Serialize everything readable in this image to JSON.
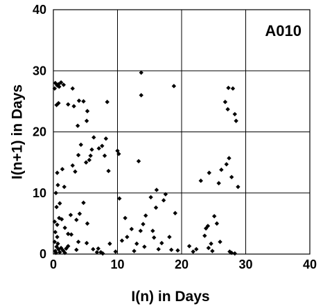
{
  "chart_data": {
    "type": "scatter",
    "title": "",
    "panel_label": "A010",
    "xlabel": "I(n) in Days",
    "ylabel": "I(n+1) in Days",
    "xlim": [
      0,
      40
    ],
    "ylim": [
      0,
      40
    ],
    "xticks": [
      "0",
      "10",
      "20",
      "30",
      "40"
    ],
    "yticks": [
      "0",
      "10",
      "20",
      "30",
      "40"
    ],
    "grid": true,
    "marker": "diamond",
    "marker_color": "#000000",
    "points": [
      [
        0.3,
        0.5
      ],
      [
        0.5,
        1.2
      ],
      [
        0.2,
        2.0
      ],
      [
        0.6,
        2.8
      ],
      [
        0.4,
        0.2
      ],
      [
        0.8,
        0.8
      ],
      [
        1.0,
        0.3
      ],
      [
        1.2,
        1.0
      ],
      [
        0.7,
        1.7
      ],
      [
        1.5,
        0.6
      ],
      [
        1.8,
        0.2
      ],
      [
        2.0,
        0.9
      ],
      [
        2.3,
        1.3
      ],
      [
        0.3,
        3.6
      ],
      [
        0.6,
        4.8
      ],
      [
        0.2,
        5.3
      ],
      [
        0.9,
        5.9
      ],
      [
        1.3,
        5.7
      ],
      [
        0.5,
        7.7
      ],
      [
        1.0,
        8.3
      ],
      [
        1.8,
        4.3
      ],
      [
        2.3,
        3.3
      ],
      [
        2.8,
        3.2
      ],
      [
        0.4,
        10.0
      ],
      [
        0.7,
        11.3
      ],
      [
        1.7,
        11.0
      ],
      [
        0.6,
        13.3
      ],
      [
        1.4,
        13.9
      ],
      [
        0.5,
        24.4
      ],
      [
        0.8,
        24.7
      ],
      [
        0.2,
        27.1
      ],
      [
        0.6,
        27.6
      ],
      [
        0.9,
        27.4
      ],
      [
        1.2,
        28.1
      ],
      [
        0.8,
        27.8
      ],
      [
        0.3,
        28.0
      ],
      [
        1.6,
        27.7
      ],
      [
        2.3,
        24.5
      ],
      [
        3.2,
        24.2
      ],
      [
        3.0,
        27.1
      ],
      [
        3.8,
        21.0
      ],
      [
        4.0,
        25.1
      ],
      [
        4.7,
        25.0
      ],
      [
        5.3,
        23.4
      ],
      [
        5.2,
        21.8
      ],
      [
        3.0,
        14.5
      ],
      [
        3.4,
        13.5
      ],
      [
        3.9,
        16.2
      ],
      [
        4.3,
        17.9
      ],
      [
        5.1,
        15.0
      ],
      [
        5.6,
        15.4
      ],
      [
        5.8,
        16.1
      ],
      [
        6.0,
        17.1
      ],
      [
        6.3,
        19.1
      ],
      [
        7.1,
        17.3
      ],
      [
        7.6,
        17.7
      ],
      [
        8.0,
        16.1
      ],
      [
        8.2,
        18.9
      ],
      [
        8.6,
        13.6
      ],
      [
        8.4,
        24.9
      ],
      [
        4.7,
        8.4
      ],
      [
        4.1,
        6.6
      ],
      [
        5.3,
        5.0
      ],
      [
        3.6,
        5.6
      ],
      [
        2.7,
        6.4
      ],
      [
        3.6,
        0.7
      ],
      [
        3.9,
        2.0
      ],
      [
        5.2,
        1.8
      ],
      [
        6.2,
        0.8
      ],
      [
        6.8,
        0.3
      ],
      [
        7.0,
        0.9
      ],
      [
        7.4,
        0.3
      ],
      [
        7.7,
        0.1
      ],
      [
        8.8,
        1.7
      ],
      [
        9.7,
        0.4
      ],
      [
        10.0,
        16.9
      ],
      [
        10.2,
        16.4
      ],
      [
        10.3,
        9.1
      ],
      [
        10.7,
        2.2
      ],
      [
        11.5,
        2.8
      ],
      [
        11.2,
        5.9
      ],
      [
        12.2,
        4.1
      ],
      [
        12.6,
        0.5
      ],
      [
        13.0,
        1.7
      ],
      [
        13.3,
        15.2
      ],
      [
        13.6,
        3.8
      ],
      [
        14.0,
        4.9
      ],
      [
        14.2,
        1.2
      ],
      [
        14.4,
        6.3
      ],
      [
        13.7,
        29.7
      ],
      [
        13.7,
        26.0
      ],
      [
        15.2,
        9.3
      ],
      [
        15.5,
        3.8
      ],
      [
        15.7,
        2.7
      ],
      [
        16.0,
        7.6
      ],
      [
        16.1,
        10.5
      ],
      [
        16.4,
        0.8
      ],
      [
        16.9,
        1.8
      ],
      [
        17.5,
        9.8
      ],
      [
        17.2,
        8.8
      ],
      [
        18.1,
        2.8
      ],
      [
        18.4,
        0.7
      ],
      [
        18.8,
        27.5
      ],
      [
        19.0,
        6.7
      ],
      [
        19.4,
        0.6
      ],
      [
        21.2,
        1.3
      ],
      [
        21.8,
        0.4
      ],
      [
        22.3,
        0.8
      ],
      [
        23.0,
        12.0
      ],
      [
        23.6,
        3.0
      ],
      [
        23.8,
        4.2
      ],
      [
        24.1,
        4.6
      ],
      [
        24.3,
        13.3
      ],
      [
        24.6,
        1.7
      ],
      [
        24.2,
        1.0
      ],
      [
        24.8,
        0.5
      ],
      [
        25.1,
        6.2
      ],
      [
        25.5,
        5.0
      ],
      [
        25.8,
        11.6
      ],
      [
        26.0,
        2.0
      ],
      [
        26.2,
        13.8
      ],
      [
        26.8,
        24.9
      ],
      [
        27.2,
        23.7
      ],
      [
        27.0,
        14.7
      ],
      [
        27.4,
        15.7
      ],
      [
        27.8,
        12.6
      ],
      [
        27.5,
        0.4
      ],
      [
        27.8,
        0.2
      ],
      [
        27.3,
        27.2
      ],
      [
        28.0,
        27.1
      ],
      [
        28.3,
        22.9
      ],
      [
        28.5,
        21.8
      ],
      [
        28.8,
        11.0
      ],
      [
        28.3,
        0.1
      ]
    ]
  }
}
